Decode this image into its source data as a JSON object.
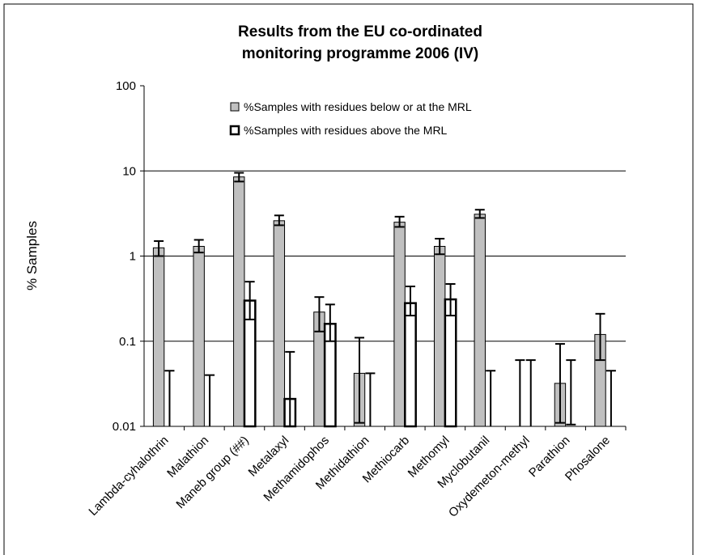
{
  "chart_data": {
    "type": "bar",
    "title": [
      "Results from the EU co-ordinated",
      "monitoring programme 2006 (IV)"
    ],
    "y_label": "% Samples",
    "log_scale": true,
    "grid": true,
    "legend_position": "top",
    "ylim": [
      0.01,
      100
    ],
    "yticks": [
      0.01,
      0.1,
      1,
      10,
      100
    ],
    "categories": [
      "Lambda-cyhalothrin",
      "Malathion",
      "Maneb group (##)",
      "Metalaxyl",
      "Methamidophos",
      "Methidathion",
      "Methiocarb",
      "Methomyl",
      "Myclobutanil",
      "Oxydemeton-methyl",
      "Parathion",
      "Phosalone"
    ],
    "series": [
      {
        "name": "%Samples with residues below or at the MRL",
        "color": "#c0c0c0",
        "values": [
          1.25,
          1.3,
          8.5,
          2.6,
          0.22,
          0.042,
          2.5,
          1.3,
          3.1,
          null,
          0.032,
          0.12
        ],
        "lower": [
          1.0,
          1.1,
          7.5,
          2.3,
          0.13,
          0.011,
          2.2,
          1.05,
          2.8,
          null,
          0.011,
          0.06
        ],
        "upper": [
          1.5,
          1.55,
          9.5,
          3.0,
          0.33,
          0.11,
          2.9,
          1.6,
          3.5,
          0.06,
          0.093,
          0.21
        ]
      },
      {
        "name": "%Samples with residues above the MRL",
        "color": "#ffffff",
        "values": [
          null,
          null,
          0.3,
          0.021,
          0.16,
          null,
          0.28,
          0.31,
          null,
          null,
          null,
          null
        ],
        "lower": [
          null,
          null,
          0.18,
          null,
          0.1,
          null,
          0.2,
          0.2,
          null,
          null,
          0.0105,
          null
        ],
        "upper": [
          0.045,
          0.04,
          0.5,
          0.075,
          0.27,
          0.042,
          0.44,
          0.47,
          0.045,
          0.06,
          0.06,
          0.045
        ]
      }
    ]
  }
}
